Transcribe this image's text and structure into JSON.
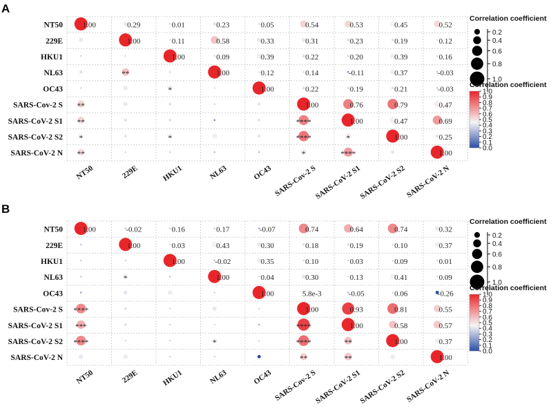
{
  "chart_data": [
    {
      "type": "heatmap",
      "panel": "A",
      "title": "",
      "rows": [
        "NT50",
        "229E",
        "HKU1",
        "NL63",
        "OC43",
        "SARS-Cov-2 S",
        "SARS-CoV-2 S1",
        "SARS-CoV-2 S2",
        "SARS-CoV-2 N"
      ],
      "columns": [
        "NT50",
        "229E",
        "HKU1",
        "NL63",
        "OC43",
        "SARS-Cov-2 S",
        "SARS-CoV-2 S1",
        "SARS-CoV-2 S2",
        "SARS-CoV-2 N"
      ],
      "values": [
        [
          1.0,
          0.29,
          0.01,
          0.23,
          0.05,
          0.54,
          0.53,
          0.45,
          0.52
        ],
        [
          0.29,
          1.0,
          0.11,
          0.58,
          0.33,
          0.31,
          0.23,
          0.19,
          0.12
        ],
        [
          0.01,
          0.11,
          1.0,
          0.09,
          0.39,
          0.22,
          0.2,
          0.39,
          0.16
        ],
        [
          0.23,
          0.58,
          0.09,
          1.0,
          0.12,
          0.14,
          -0.11,
          0.37,
          -0.03
        ],
        [
          0.05,
          0.33,
          0.39,
          0.12,
          1.0,
          0.22,
          0.19,
          0.21,
          -0.03
        ],
        [
          0.54,
          0.31,
          0.22,
          0.14,
          0.22,
          1.0,
          0.76,
          0.79,
          0.47
        ],
        [
          0.53,
          0.23,
          0.2,
          -0.11,
          0.19,
          0.76,
          1.0,
          0.47,
          0.69
        ],
        [
          0.45,
          0.19,
          0.39,
          0.37,
          0.21,
          0.79,
          0.47,
          1.0,
          0.25
        ],
        [
          0.52,
          0.12,
          0.16,
          -0.03,
          -0.03,
          0.47,
          0.69,
          0.25,
          1.0
        ]
      ],
      "upper_labels": [
        [
          "1.00",
          "0.29",
          "0.01",
          "0.23",
          "0.05",
          "0.54",
          "0.53",
          "0.45",
          "0.52"
        ],
        [
          "",
          "1.00",
          "0.11",
          "0.58",
          "0.33",
          "0.31",
          "0.23",
          "0.19",
          "0.12"
        ],
        [
          "",
          "",
          "1.00",
          "0.09",
          "0.39",
          "0.22",
          "0.20",
          "0.39",
          "0.16"
        ],
        [
          "",
          "",
          "",
          "1.00",
          "0.12",
          "0.14",
          "-0.11",
          "0.37",
          "-0.03"
        ],
        [
          "",
          "",
          "",
          "",
          "1.00",
          "0.22",
          "0.19",
          "0.21",
          "-0.03"
        ],
        [
          "",
          "",
          "",
          "",
          "",
          "1.00",
          "0.76",
          "0.79",
          "0.47"
        ],
        [
          "",
          "",
          "",
          "",
          "",
          "",
          "1.00",
          "0.47",
          "0.69"
        ],
        [
          "",
          "",
          "",
          "",
          "",
          "",
          "",
          "1.00",
          "0.25"
        ],
        [
          "",
          "",
          "",
          "",
          "",
          "",
          "",
          "",
          "1.00"
        ]
      ],
      "lower_stars": [
        [
          "",
          "",
          "",
          "",
          "",
          "",
          "",
          "",
          ""
        ],
        [
          "",
          "",
          "",
          "",
          "",
          "",
          "",
          "",
          ""
        ],
        [
          "",
          "",
          "",
          "",
          "",
          "",
          "",
          "",
          ""
        ],
        [
          "",
          "**",
          "",
          "",
          "",
          "",
          "",
          "",
          ""
        ],
        [
          "",
          "",
          "*",
          "",
          "",
          "",
          "",
          "",
          ""
        ],
        [
          "**",
          "",
          "",
          "",
          "",
          "",
          "",
          "",
          ""
        ],
        [
          "**",
          "",
          "",
          "",
          "",
          "****",
          "",
          "",
          ""
        ],
        [
          "*",
          "",
          "*",
          "",
          "",
          "****",
          "*",
          "",
          ""
        ],
        [
          "**",
          "",
          "",
          "",
          "",
          "*",
          "****",
          "",
          ""
        ]
      ]
    },
    {
      "type": "heatmap",
      "panel": "B",
      "title": "",
      "rows": [
        "NT50",
        "229E",
        "HKU1",
        "NL63",
        "OC43",
        "SARS-Cov-2 S",
        "SARS-CoV-2 S1",
        "SARS-CoV-2 S2",
        "SARS-CoV-2 N"
      ],
      "columns": [
        "NT50",
        "229E",
        "HKU1",
        "NL63",
        "OC43",
        "SARS-Cov-2 S",
        "SARS-CoV-2 S1",
        "SARS-CoV-2 S2",
        "SARS-CoV-2 N"
      ],
      "values": [
        [
          1.0,
          -0.02,
          0.16,
          0.17,
          -0.07,
          0.74,
          0.64,
          0.74,
          0.32
        ],
        [
          -0.02,
          1.0,
          0.03,
          0.43,
          0.3,
          0.18,
          0.19,
          0.1,
          0.37
        ],
        [
          0.16,
          0.03,
          1.0,
          -0.02,
          0.35,
          0.1,
          0.03,
          0.09,
          0.01
        ],
        [
          0.17,
          0.43,
          -0.02,
          1.0,
          0.04,
          0.3,
          0.13,
          0.41,
          0.09
        ],
        [
          -0.07,
          0.3,
          0.35,
          0.04,
          1.0,
          0.0058,
          -0.05,
          0.06,
          -0.26
        ],
        [
          0.74,
          0.18,
          0.1,
          0.3,
          0.0058,
          1.0,
          0.93,
          0.81,
          0.55
        ],
        [
          0.64,
          0.19,
          0.03,
          0.13,
          -0.05,
          0.93,
          1.0,
          0.58,
          0.57
        ],
        [
          0.74,
          0.1,
          0.09,
          0.41,
          0.06,
          0.81,
          0.58,
          1.0,
          0.37
        ],
        [
          0.32,
          0.37,
          0.01,
          0.09,
          -0.26,
          0.55,
          0.57,
          0.37,
          1.0
        ]
      ],
      "upper_labels": [
        [
          "1.00",
          "-0.02",
          "0.16",
          "0.17",
          "-0.07",
          "0.74",
          "0.64",
          "0.74",
          "0.32"
        ],
        [
          "",
          "1.00",
          "0.03",
          "0.43",
          "0.30",
          "0.18",
          "0.19",
          "0.10",
          "0.37"
        ],
        [
          "",
          "",
          "1.00",
          "-0.02",
          "0.35",
          "0.10",
          "0.03",
          "0.09",
          "0.01"
        ],
        [
          "",
          "",
          "",
          "1.00",
          "0.04",
          "0.30",
          "0.13",
          "0.41",
          "0.09"
        ],
        [
          "",
          "",
          "",
          "",
          "1.00",
          "5.8e-3",
          "-0.05",
          "0.06",
          "-0.26"
        ],
        [
          "",
          "",
          "",
          "",
          "",
          "1.00",
          "0.93",
          "0.81",
          "0.55"
        ],
        [
          "",
          "",
          "",
          "",
          "",
          "",
          "1.00",
          "0.58",
          "0.57"
        ],
        [
          "",
          "",
          "",
          "",
          "",
          "",
          "",
          "1.00",
          "0.37"
        ],
        [
          "",
          "",
          "",
          "",
          "",
          "",
          "",
          "",
          "1.00"
        ]
      ],
      "lower_stars": [
        [
          "",
          "",
          "",
          "",
          "",
          "",
          "",
          "",
          ""
        ],
        [
          "",
          "",
          "",
          "",
          "",
          "",
          "",
          "",
          ""
        ],
        [
          "",
          "",
          "",
          "",
          "",
          "",
          "",
          "",
          ""
        ],
        [
          "",
          "*",
          "",
          "",
          "",
          "",
          "",
          "",
          ""
        ],
        [
          "",
          "",
          "",
          "",
          "",
          "",
          "",
          "",
          ""
        ],
        [
          "****",
          "",
          "",
          "",
          "",
          "",
          "",
          "",
          ""
        ],
        [
          "***",
          "",
          "",
          "",
          "",
          "****",
          "",
          "",
          ""
        ],
        [
          "****",
          "",
          "",
          "*",
          "",
          "****",
          "**",
          "",
          ""
        ],
        [
          "",
          "",
          "",
          "",
          "",
          "**",
          "**",
          "",
          ""
        ]
      ]
    }
  ],
  "legend": {
    "size_title": "Correlation coefficient",
    "size_ticks": [
      "0.2",
      "0.4",
      "0.6",
      "0.8",
      "1.0"
    ],
    "size_values": [
      0.2,
      0.4,
      0.6,
      0.8,
      1.0
    ],
    "color_title": "Correlation coefficient",
    "color_ticks": [
      "1.0",
      "0.9",
      "0.8",
      "0.7",
      "0.6",
      "0.5",
      "0.4",
      "0.3",
      "0.2",
      "0.1",
      "0.0"
    ],
    "color_range": [
      0.0,
      1.0
    ]
  },
  "colors": {
    "high": "#e8262a",
    "mid": "#f5f5f5",
    "low": "#2c4ea3",
    "grid": "#d0d0d0"
  }
}
